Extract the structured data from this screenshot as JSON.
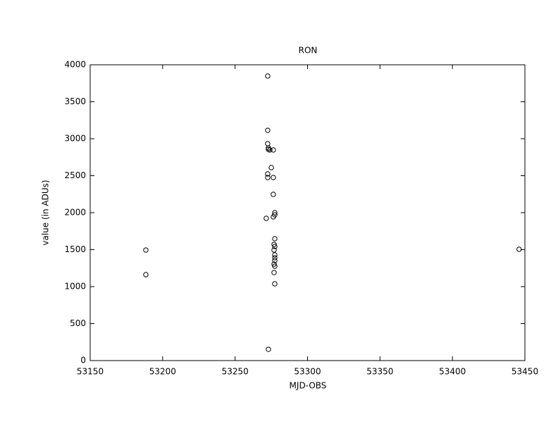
{
  "chart_data": {
    "type": "scatter",
    "title": "RON",
    "xlabel": "MJD-OBS",
    "ylabel": "value (in ADUs)",
    "x": [
      53188.4,
      53188.4,
      53272.5,
      53272.5,
      53272.5,
      53273,
      53273,
      53274,
      53276.4,
      53275,
      53272.5,
      53272.5,
      53276.4,
      53276.4,
      53277.4,
      53277.4,
      53276.4,
      53271.5,
      53277.4,
      53276.9,
      53277.4,
      53276.9,
      53277.4,
      53277.4,
      53277.4,
      53276.9,
      53277.4,
      53276.9,
      53277.4,
      53273,
      53446
    ],
    "values": [
      1495,
      1162,
      3848,
      3114,
      2933,
      2876,
      2857,
      2848,
      2848,
      2610,
      2524,
      2476,
      2476,
      2248,
      2000,
      1971,
      1943,
      1924,
      1648,
      1571,
      1543,
      1495,
      1429,
      1390,
      1352,
      1305,
      1276,
      1190,
      1038,
      152,
      1505
    ],
    "color": "#000000",
    "xlim": [
      53150,
      53450
    ],
    "xticks": [
      53150,
      53200,
      53250,
      53300,
      53350,
      53400,
      53450
    ],
    "ylim": [
      0,
      4000
    ],
    "yticks": [
      0,
      500,
      1000,
      1500,
      2000,
      2500,
      3000,
      3500,
      4000
    ],
    "grid": false
  }
}
